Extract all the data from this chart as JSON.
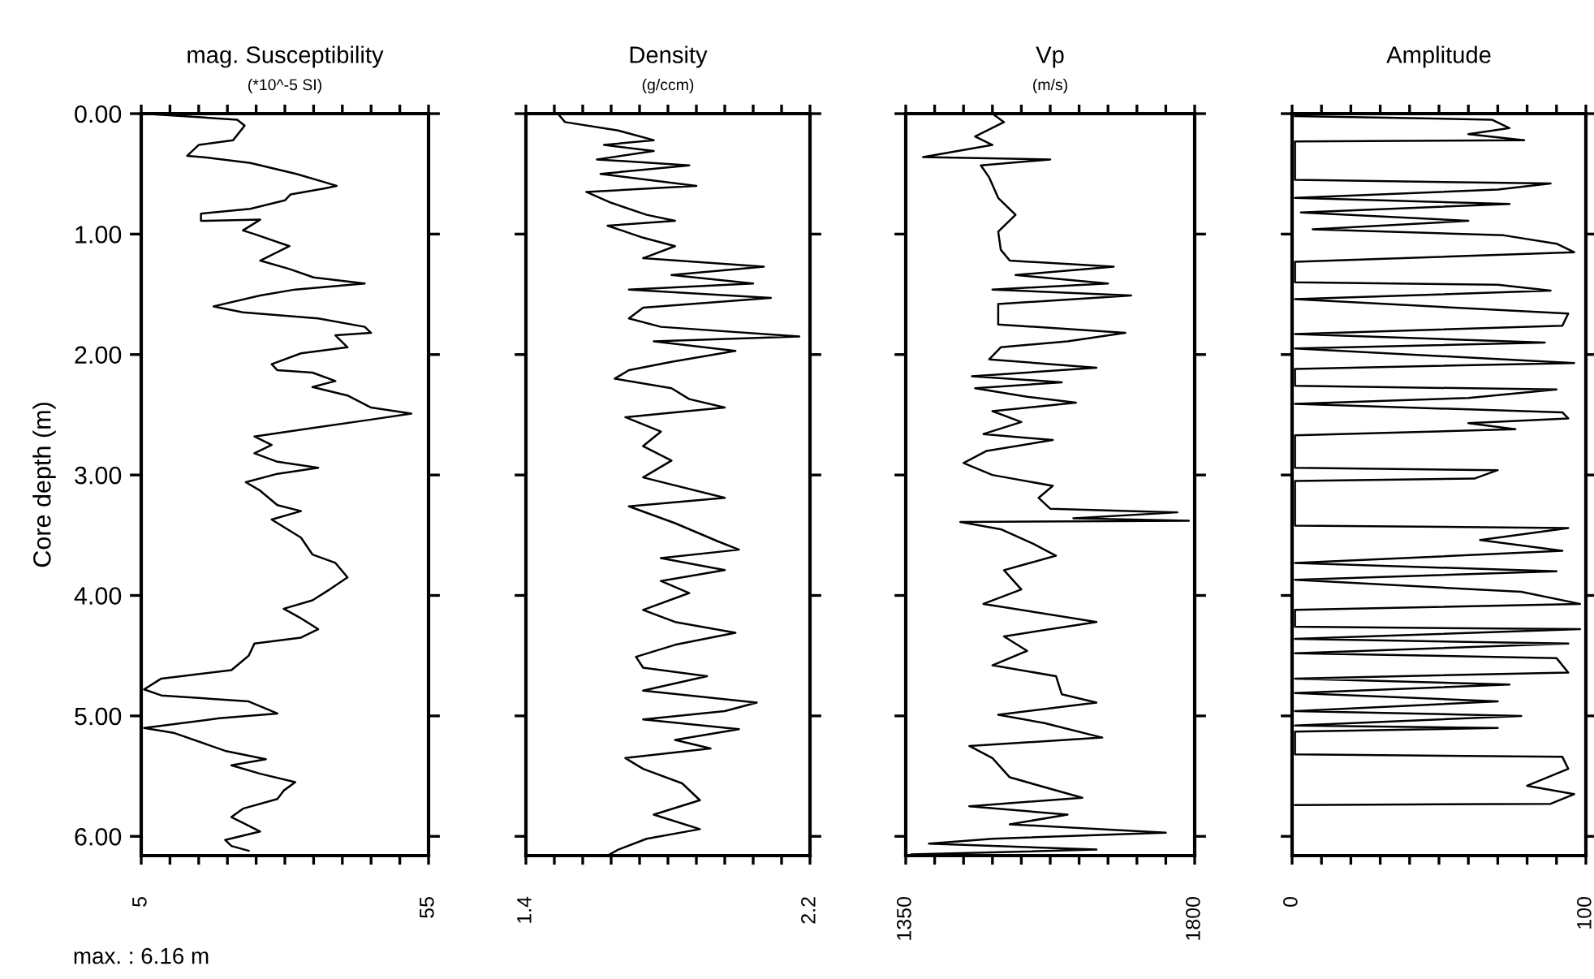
{
  "chart_data": [
    {
      "type": "line",
      "title": "mag. Susceptibility",
      "subtitle": "(*10^-5 SI)",
      "ylabel": "Core depth (m)",
      "annotations": [
        "max. : 6.16 m"
      ],
      "xlim": [
        5,
        55
      ],
      "xticks": [
        5,
        {
          "value": 10,
          "label": null
        },
        {
          "value": 15,
          "label": null
        },
        {
          "value": 20,
          "label": null
        },
        {
          "value": 25,
          "label": null
        },
        {
          "value": 30,
          "label": null
        },
        {
          "value": 35,
          "label": null
        },
        {
          "value": 40,
          "label": null
        },
        {
          "value": 45,
          "label": null
        },
        {
          "value": 50,
          "label": null
        },
        55
      ],
      "ylim": [
        6.16,
        0
      ],
      "yticks": [
        {
          "value": 0,
          "label": "0.00"
        },
        {
          "value": 1,
          "label": "1.00"
        },
        {
          "value": 2,
          "label": "2.00"
        },
        {
          "value": 3,
          "label": "3.00"
        },
        {
          "value": 4,
          "label": "4.00"
        },
        {
          "value": 5,
          "label": "5.00"
        },
        {
          "value": 6,
          "label": "6.00"
        }
      ],
      "grid": false,
      "legend": false,
      "series": [
        {
          "color": "#000000",
          "x": [
            5.5,
            21.7,
            23,
            21,
            15,
            13,
            15.6,
            24,
            32,
            37,
            39,
            37,
            31,
            30,
            24,
            15.4,
            15.4,
            25.7,
            22.7,
            24.7,
            30.8,
            25.7,
            30.8,
            35,
            43.9,
            31.8,
            25.7,
            17.6,
            22.7,
            35.8,
            43.9,
            45,
            38.8,
            40.9,
            32.8,
            27.7,
            28.7,
            34.8,
            38.8,
            34.8,
            40.9,
            45,
            52,
            45,
            34.8,
            24.7,
            27.7,
            24.7,
            28.7,
            35.8,
            28.7,
            23.2,
            25.7,
            28.7,
            32.8,
            27.7,
            32.8,
            34.8,
            38.8,
            40.9,
            37.8,
            34.8,
            29.8,
            32.8,
            35.8,
            32.8,
            24.7,
            23.7,
            20.7,
            8.5,
            5.5,
            8.5,
            23.7,
            28.7,
            18.6,
            5.5,
            10.6,
            19.6,
            26.7,
            20.7,
            25.7,
            31.8,
            29.8,
            28.7,
            22.7,
            20.7,
            25.7,
            19.6,
            20.7,
            23.7
          ],
          "values": [
            0,
            0.05,
            0.1,
            0.22,
            0.26,
            0.35,
            0.36,
            0.41,
            0.5,
            0.57,
            0.6,
            0.62,
            0.67,
            0.72,
            0.79,
            0.83,
            0.89,
            0.88,
            0.97,
            1.0,
            1.1,
            1.22,
            1.29,
            1.36,
            1.41,
            1.46,
            1.51,
            1.6,
            1.65,
            1.7,
            1.77,
            1.82,
            1.84,
            1.94,
            1.99,
            2.08,
            2.13,
            2.15,
            2.22,
            2.27,
            2.34,
            2.44,
            2.49,
            2.54,
            2.61,
            2.68,
            2.75,
            2.82,
            2.89,
            2.94,
            2.99,
            3.06,
            3.13,
            3.25,
            3.3,
            3.37,
            3.52,
            3.66,
            3.73,
            3.85,
            3.95,
            4.04,
            4.11,
            4.19,
            4.28,
            4.35,
            4.4,
            4.5,
            4.62,
            4.69,
            4.78,
            4.83,
            4.88,
            4.98,
            5.02,
            5.1,
            5.14,
            5.29,
            5.36,
            5.41,
            5.48,
            5.55,
            5.62,
            5.69,
            5.77,
            5.84,
            5.96,
            6.03,
            6.08,
            6.12
          ]
        }
      ]
    },
    {
      "type": "line",
      "title": "Density",
      "subtitle": "(g/ccm)",
      "tick_labels": "x",
      "xlim": [
        1.4,
        2.2
      ],
      "xticks": [
        1.4,
        {
          "value": 1.48,
          "label": null
        },
        {
          "value": 1.56,
          "label": null
        },
        {
          "value": 1.64,
          "label": null
        },
        {
          "value": 1.72,
          "label": null
        },
        {
          "value": 1.8,
          "label": null
        },
        {
          "value": 1.88,
          "label": null
        },
        {
          "value": 1.96,
          "label": null
        },
        {
          "value": 2.04,
          "label": null
        },
        {
          "value": 2.12,
          "label": null
        },
        2.2
      ],
      "ylim": [
        6.16,
        0
      ],
      "yticks": [
        0,
        1,
        2,
        3,
        4,
        5,
        6
      ],
      "grid": false,
      "legend": false,
      "series": [
        {
          "color": "#000000",
          "x": [
            1.49,
            1.51,
            1.66,
            1.76,
            1.62,
            1.76,
            1.6,
            1.86,
            1.61,
            1.88,
            1.57,
            1.64,
            1.74,
            1.82,
            1.63,
            1.73,
            1.82,
            1.73,
            2.07,
            1.81,
            2.04,
            1.69,
            2.09,
            1.73,
            1.69,
            1.78,
            2.17,
            1.76,
            1.99,
            1.81,
            1.69,
            1.65,
            1.81,
            1.86,
            1.96,
            1.68,
            1.78,
            1.73,
            1.81,
            1.73,
            1.96,
            1.69,
            1.82,
            1.94,
            2.0,
            1.78,
            1.96,
            1.78,
            1.86,
            1.73,
            1.82,
            1.99,
            1.82,
            1.71,
            1.73,
            1.91,
            1.73,
            2.05,
            1.96,
            1.73,
            2.0,
            1.82,
            1.92,
            1.68,
            1.73,
            1.84,
            1.89,
            1.76,
            1.89,
            1.74,
            1.66,
            1.63
          ],
          "values": [
            0,
            0.07,
            0.14,
            0.22,
            0.26,
            0.31,
            0.38,
            0.43,
            0.5,
            0.6,
            0.65,
            0.74,
            0.84,
            0.89,
            0.93,
            1.03,
            1.1,
            1.2,
            1.27,
            1.34,
            1.41,
            1.46,
            1.53,
            1.61,
            1.7,
            1.77,
            1.85,
            1.89,
            1.97,
            2.06,
            2.13,
            2.2,
            2.28,
            2.37,
            2.44,
            2.52,
            2.64,
            2.76,
            2.88,
            3.02,
            3.19,
            3.26,
            3.4,
            3.55,
            3.62,
            3.69,
            3.79,
            3.88,
            3.98,
            4.12,
            4.22,
            4.31,
            4.41,
            4.51,
            4.6,
            4.67,
            4.79,
            4.89,
            4.96,
            5.03,
            5.11,
            5.2,
            5.27,
            5.35,
            5.44,
            5.56,
            5.7,
            5.82,
            5.94,
            6.02,
            6.11,
            6.16
          ]
        }
      ]
    },
    {
      "type": "line",
      "title": "Vp",
      "subtitle": "(m/s)",
      "tick_labels": "x",
      "xlim": [
        1350,
        1800
      ],
      "xticks": [
        1350,
        {
          "value": 1395,
          "label": null
        },
        {
          "value": 1440,
          "label": null
        },
        {
          "value": 1485,
          "label": null
        },
        {
          "value": 1530,
          "label": null
        },
        {
          "value": 1575,
          "label": null
        },
        {
          "value": 1620,
          "label": null
        },
        {
          "value": 1665,
          "label": null
        },
        {
          "value": 1710,
          "label": null
        },
        {
          "value": 1755,
          "label": null
        },
        1800
      ],
      "ylim": [
        6.16,
        0
      ],
      "yticks": [
        0,
        1,
        2,
        3,
        4,
        5,
        6
      ],
      "grid": false,
      "legend": false,
      "series": [
        {
          "color": "#000000",
          "x": [
            1485,
            1503,
            1458,
            1485,
            1377,
            1575,
            1467,
            1480,
            1494,
            1521,
            1494,
            1498,
            1512,
            1674,
            1521,
            1665,
            1485,
            1701,
            1494,
            1494,
            1692,
            1602,
            1498,
            1480,
            1647,
            1453,
            1593,
            1458,
            1539,
            1615,
            1485,
            1530,
            1471,
            1579,
            1476,
            1440,
            1485,
            1579,
            1557,
            1575,
            1773,
            1611,
            1791,
            1435,
            1498,
            1548,
            1584,
            1503,
            1530,
            1471,
            1647,
            1503,
            1539,
            1485,
            1584,
            1593,
            1647,
            1494,
            1566,
            1656,
            1449,
            1485,
            1512,
            1625,
            1449,
            1602,
            1512,
            1755,
            1485,
            1386,
            1647,
            1359
          ],
          "values": [
            0,
            0.07,
            0.19,
            0.26,
            0.36,
            0.38,
            0.43,
            0.53,
            0.7,
            0.84,
            0.98,
            1.13,
            1.22,
            1.27,
            1.34,
            1.41,
            1.46,
            1.51,
            1.58,
            1.75,
            1.82,
            1.89,
            1.94,
            2.04,
            2.11,
            2.18,
            2.23,
            2.28,
            2.35,
            2.4,
            2.47,
            2.56,
            2.66,
            2.71,
            2.8,
            2.9,
            3.0,
            3.09,
            3.19,
            3.28,
            3.31,
            3.36,
            3.38,
            3.39,
            3.45,
            3.57,
            3.67,
            3.79,
            3.95,
            4.07,
            4.22,
            4.34,
            4.46,
            4.58,
            4.67,
            4.82,
            4.89,
            4.99,
            5.06,
            5.18,
            5.25,
            5.35,
            5.51,
            5.68,
            5.75,
            5.82,
            5.9,
            5.97,
            6.02,
            6.06,
            6.11,
            6.15
          ]
        }
      ]
    },
    {
      "type": "line",
      "title": "Amplitude",
      "tick_labels": "x",
      "xlim": [
        0,
        100
      ],
      "xticks": [
        0,
        {
          "value": 10,
          "label": null
        },
        {
          "value": 20,
          "label": null
        },
        {
          "value": 30,
          "label": null
        },
        {
          "value": 40,
          "label": null
        },
        {
          "value": 50,
          "label": null
        },
        {
          "value": 60,
          "label": null
        },
        {
          "value": 70,
          "label": null
        },
        {
          "value": 80,
          "label": null
        },
        {
          "value": 90,
          "label": null
        },
        100
      ],
      "ylim": [
        6.16,
        0
      ],
      "yticks": [
        0,
        1,
        2,
        3,
        4,
        5,
        6
      ],
      "grid": false,
      "legend": false,
      "series": [
        {
          "color": "#000000",
          "x": [
            1,
            68,
            74,
            60,
            79,
            1,
            1,
            88,
            70,
            1,
            74,
            3,
            60,
            7,
            72,
            90,
            96,
            1,
            1,
            70,
            88,
            1,
            94,
            92,
            1,
            86,
            1,
            96,
            1,
            1,
            90,
            60,
            1,
            92,
            94,
            60,
            76,
            1,
            1,
            70,
            62,
            1,
            1,
            94,
            64,
            92,
            1,
            90,
            1,
            78,
            98,
            1,
            1,
            98,
            1,
            94,
            1,
            90,
            94,
            1,
            74,
            1,
            70,
            1,
            78,
            1,
            70,
            1,
            1,
            92,
            94,
            80,
            96,
            88,
            1
          ],
          "values": [
            0.02,
            0.05,
            0.12,
            0.17,
            0.22,
            0.23,
            0.55,
            0.58,
            0.63,
            0.7,
            0.75,
            0.82,
            0.89,
            0.96,
            1.01,
            1.08,
            1.15,
            1.23,
            1.4,
            1.42,
            1.47,
            1.54,
            1.66,
            1.76,
            1.83,
            1.9,
            1.95,
            2.07,
            2.12,
            2.26,
            2.29,
            2.36,
            2.41,
            2.48,
            2.53,
            2.57,
            2.62,
            2.67,
            2.94,
            2.96,
            3.03,
            3.05,
            3.42,
            3.44,
            3.54,
            3.63,
            3.73,
            3.8,
            3.87,
            3.97,
            4.07,
            4.12,
            4.26,
            4.28,
            4.36,
            4.4,
            4.48,
            4.52,
            4.64,
            4.69,
            4.74,
            4.81,
            4.88,
            4.96,
            5.0,
            5.08,
            5.1,
            5.13,
            5.32,
            5.34,
            5.44,
            5.58,
            5.65,
            5.73,
            5.74
          ]
        }
      ]
    }
  ]
}
